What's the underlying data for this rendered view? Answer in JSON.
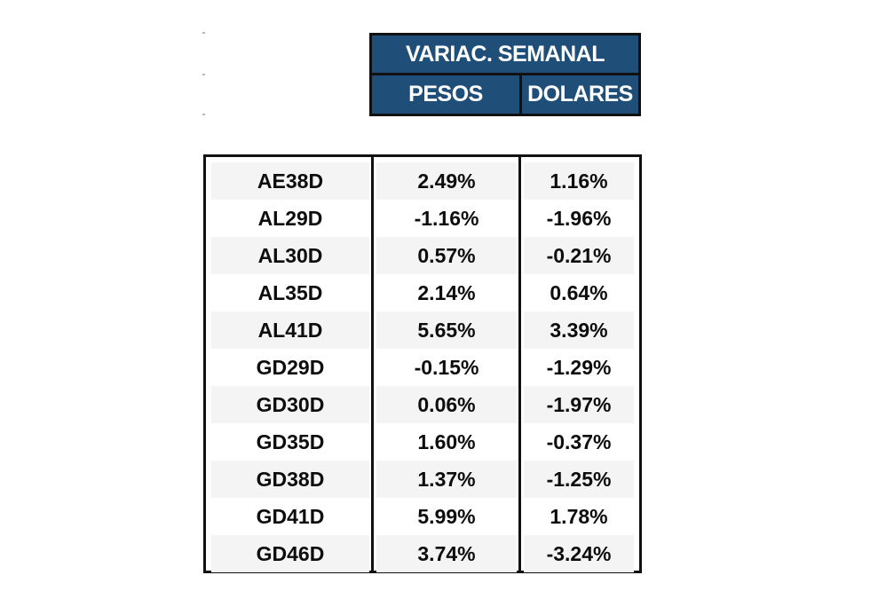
{
  "header": {
    "title": "VARIAC. SEMANAL",
    "col_pesos": "PESOS",
    "col_dolares": "DOLARES"
  },
  "rows": [
    {
      "ticker": "AE38D",
      "pesos": "2.49%",
      "dolares": "1.16%"
    },
    {
      "ticker": "AL29D",
      "pesos": "-1.16%",
      "dolares": "-1.96%"
    },
    {
      "ticker": "AL30D",
      "pesos": "0.57%",
      "dolares": "-0.21%"
    },
    {
      "ticker": "AL35D",
      "pesos": "2.14%",
      "dolares": "0.64%"
    },
    {
      "ticker": "AL41D",
      "pesos": "5.65%",
      "dolares": "3.39%"
    },
    {
      "ticker": "GD29D",
      "pesos": "-0.15%",
      "dolares": "-1.29%"
    },
    {
      "ticker": "GD30D",
      "pesos": "0.06%",
      "dolares": "-1.97%"
    },
    {
      "ticker": "GD35D",
      "pesos": "1.60%",
      "dolares": "-0.37%"
    },
    {
      "ticker": "GD38D",
      "pesos": "1.37%",
      "dolares": "-1.25%"
    },
    {
      "ticker": "GD41D",
      "pesos": "5.99%",
      "dolares": "1.78%"
    },
    {
      "ticker": "GD46D",
      "pesos": "3.74%",
      "dolares": "-3.24%"
    }
  ],
  "colors": {
    "header_bg": "#1f4e79",
    "header_text": "#ffffff",
    "border": "#111111"
  }
}
